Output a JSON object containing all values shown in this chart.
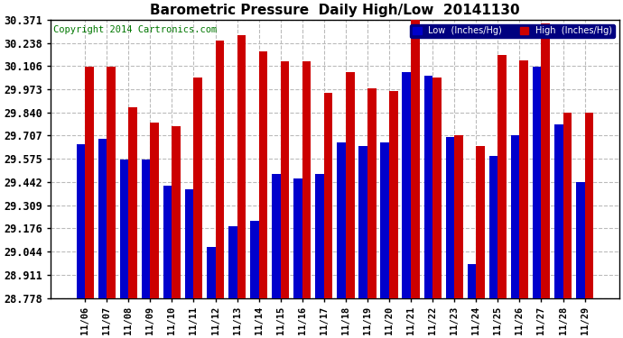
{
  "title": "Barometric Pressure  Daily High/Low  20141130",
  "copyright": "Copyright 2014 Cartronics.com",
  "dates": [
    "11/06",
    "11/07",
    "11/08",
    "11/09",
    "11/10",
    "11/11",
    "11/12",
    "11/13",
    "11/14",
    "11/15",
    "11/16",
    "11/17",
    "11/18",
    "11/19",
    "11/20",
    "11/21",
    "11/22",
    "11/23",
    "11/24",
    "11/25",
    "11/26",
    "11/27",
    "11/28",
    "11/29"
  ],
  "low_values": [
    29.66,
    29.69,
    29.57,
    29.57,
    29.42,
    29.4,
    29.07,
    29.19,
    29.22,
    29.49,
    29.46,
    29.49,
    29.67,
    29.65,
    29.67,
    30.07,
    30.05,
    29.7,
    28.97,
    29.59,
    29.71,
    30.1,
    29.77,
    29.44
  ],
  "high_values": [
    30.1,
    30.1,
    29.87,
    29.78,
    29.76,
    30.04,
    30.25,
    30.28,
    30.19,
    30.13,
    30.13,
    29.95,
    30.07,
    29.98,
    29.96,
    30.37,
    30.04,
    29.71,
    29.65,
    30.17,
    30.14,
    30.35,
    29.84,
    29.84
  ],
  "low_color": "#0000cc",
  "high_color": "#cc0000",
  "bg_color": "#ffffff",
  "grid_color": "#bbbbbb",
  "title_fontsize": 11,
  "ylabel_fontsize": 8.5,
  "xlabel_fontsize": 7.5,
  "copyright_fontsize": 7.5,
  "legend_low_label": "Low  (Inches/Hg)",
  "legend_high_label": "High  (Inches/Hg)",
  "ymin": 28.778,
  "ymax": 30.371,
  "yticks": [
    28.778,
    28.911,
    29.044,
    29.176,
    29.309,
    29.442,
    29.575,
    29.707,
    29.84,
    29.973,
    30.106,
    30.238,
    30.371
  ]
}
